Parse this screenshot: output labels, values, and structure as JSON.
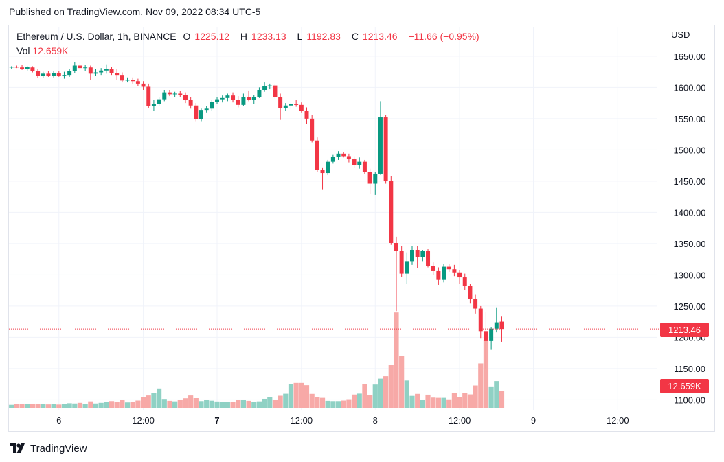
{
  "header": {
    "published": "Published on TradingView.com, Nov 09, 2022 08:34 UTC-5"
  },
  "legend": {
    "symbol": "Ethereum / U.S. Dollar, 1h, BINANCE",
    "o_label": "O",
    "o_value": "1225.12",
    "h_label": "H",
    "h_value": "1233.13",
    "l_label": "L",
    "l_value": "1192.83",
    "c_label": "C",
    "c_value": "1213.46",
    "change": "−11.66 (−0.95%)",
    "vol_label": "Vol",
    "vol_value": "12.659K"
  },
  "axis": {
    "currency": "USD",
    "price_tag": "1213.46",
    "vol_tag": "12.659K"
  },
  "footer": {
    "brand": "TradingView"
  },
  "colors": {
    "up": "#089981",
    "down": "#f23645",
    "up_vol": "#8fd1c4",
    "down_vol": "#f7a9a7"
  },
  "chart_data": {
    "type": "candlestick",
    "interval": "1h",
    "y_ticks": [
      1100,
      1150,
      1200,
      1250,
      1300,
      1350,
      1400,
      1450,
      1500,
      1550,
      1600,
      1650
    ],
    "y_tick_labels": [
      "1100.00",
      "1150.00",
      "1200.00",
      "1250.00",
      "1300.00",
      "1350.00",
      "1400.00",
      "1450.00",
      "1500.00",
      "1550.00",
      "1600.00",
      "1650.00"
    ],
    "ylim": [
      1084,
      1674
    ],
    "x_tick_labels": [
      {
        "label": "6",
        "bar": 9,
        "bold": false
      },
      {
        "label": "12:00",
        "bar": 25,
        "bold": false
      },
      {
        "label": "7",
        "bar": 39,
        "bold": true
      },
      {
        "label": "12:00",
        "bar": 55,
        "bold": false
      },
      {
        "label": "8",
        "bar": 69,
        "bold": false
      },
      {
        "label": "12:00",
        "bar": 85,
        "bold": false
      },
      {
        "label": "9",
        "bar": 99,
        "bold": false
      },
      {
        "label": "12:00",
        "bar": 115,
        "bold": false
      }
    ],
    "last_price": 1213.46,
    "candles": [
      [
        1632,
        1634,
        1630,
        1633
      ],
      [
        1633,
        1635,
        1631,
        1632
      ],
      [
        1632,
        1636,
        1628,
        1630
      ],
      [
        1630,
        1634,
        1627,
        1633
      ],
      [
        1632,
        1634,
        1624,
        1626
      ],
      [
        1626,
        1630,
        1615,
        1618
      ],
      [
        1618,
        1625,
        1615,
        1622
      ],
      [
        1622,
        1626,
        1617,
        1619
      ],
      [
        1619,
        1626,
        1616,
        1623
      ],
      [
        1623,
        1626,
        1617,
        1619
      ],
      [
        1619,
        1625,
        1614,
        1620
      ],
      [
        1620,
        1630,
        1617,
        1626
      ],
      [
        1626,
        1640,
        1623,
        1635
      ],
      [
        1635,
        1640,
        1628,
        1631
      ],
      [
        1631,
        1636,
        1626,
        1632
      ],
      [
        1632,
        1635,
        1612,
        1622
      ],
      [
        1622,
        1630,
        1618,
        1624
      ],
      [
        1624,
        1631,
        1620,
        1627
      ],
      [
        1627,
        1637,
        1622,
        1630
      ],
      [
        1630,
        1633,
        1620,
        1623
      ],
      [
        1623,
        1629,
        1612,
        1620
      ],
      [
        1620,
        1624,
        1608,
        1611
      ],
      [
        1611,
        1616,
        1608,
        1612
      ],
      [
        1612,
        1616,
        1606,
        1610
      ],
      [
        1610,
        1614,
        1602,
        1606
      ],
      [
        1606,
        1610,
        1596,
        1601
      ],
      [
        1601,
        1606,
        1567,
        1570
      ],
      [
        1570,
        1580,
        1563,
        1574
      ],
      [
        1574,
        1584,
        1570,
        1581
      ],
      [
        1581,
        1596,
        1578,
        1592
      ],
      [
        1592,
        1596,
        1586,
        1589
      ],
      [
        1589,
        1593,
        1584,
        1590
      ],
      [
        1590,
        1594,
        1584,
        1588
      ],
      [
        1588,
        1592,
        1575,
        1580
      ],
      [
        1580,
        1584,
        1566,
        1571
      ],
      [
        1571,
        1575,
        1546,
        1549
      ],
      [
        1549,
        1566,
        1546,
        1564
      ],
      [
        1564,
        1570,
        1560,
        1566
      ],
      [
        1566,
        1580,
        1562,
        1577
      ],
      [
        1577,
        1585,
        1573,
        1581
      ],
      [
        1581,
        1587,
        1576,
        1583
      ],
      [
        1583,
        1590,
        1578,
        1587
      ],
      [
        1587,
        1592,
        1576,
        1580
      ],
      [
        1580,
        1586,
        1568,
        1572
      ],
      [
        1572,
        1590,
        1570,
        1585
      ],
      [
        1585,
        1595,
        1578,
        1580
      ],
      [
        1580,
        1588,
        1574,
        1585
      ],
      [
        1585,
        1600,
        1583,
        1596
      ],
      [
        1596,
        1608,
        1593,
        1602
      ],
      [
        1602,
        1606,
        1597,
        1603
      ],
      [
        1603,
        1605,
        1582,
        1585
      ],
      [
        1585,
        1590,
        1548,
        1567
      ],
      [
        1567,
        1575,
        1562,
        1571
      ],
      [
        1571,
        1576,
        1565,
        1573
      ],
      [
        1573,
        1580,
        1569,
        1572
      ],
      [
        1572,
        1576,
        1560,
        1562
      ],
      [
        1562,
        1568,
        1542,
        1550
      ],
      [
        1550,
        1556,
        1512,
        1515
      ],
      [
        1515,
        1520,
        1465,
        1468
      ],
      [
        1468,
        1472,
        1436,
        1463
      ],
      [
        1463,
        1484,
        1460,
        1481
      ],
      [
        1481,
        1492,
        1478,
        1489
      ],
      [
        1489,
        1498,
        1484,
        1494
      ],
      [
        1494,
        1496,
        1488,
        1490
      ],
      [
        1490,
        1494,
        1480,
        1485
      ],
      [
        1485,
        1490,
        1471,
        1476
      ],
      [
        1476,
        1488,
        1470,
        1481
      ],
      [
        1481,
        1484,
        1462,
        1465
      ],
      [
        1465,
        1470,
        1430,
        1446
      ],
      [
        1446,
        1465,
        1428,
        1462
      ],
      [
        1462,
        1578,
        1460,
        1552
      ],
      [
        1552,
        1556,
        1446,
        1450
      ],
      [
        1450,
        1458,
        1348,
        1351
      ],
      [
        1351,
        1361,
        1242,
        1338
      ],
      [
        1338,
        1346,
        1297,
        1302
      ],
      [
        1302,
        1336,
        1286,
        1322
      ],
      [
        1322,
        1346,
        1316,
        1340
      ],
      [
        1340,
        1346,
        1311,
        1328
      ],
      [
        1328,
        1340,
        1322,
        1338
      ],
      [
        1338,
        1342,
        1312,
        1314
      ],
      [
        1314,
        1320,
        1300,
        1306
      ],
      [
        1306,
        1312,
        1284,
        1292
      ],
      [
        1292,
        1317,
        1288,
        1313
      ],
      [
        1313,
        1318,
        1305,
        1309
      ],
      [
        1309,
        1316,
        1298,
        1304
      ],
      [
        1304,
        1308,
        1286,
        1296
      ],
      [
        1296,
        1302,
        1276,
        1282
      ],
      [
        1282,
        1286,
        1254,
        1262
      ],
      [
        1262,
        1268,
        1238,
        1246
      ],
      [
        1246,
        1250,
        1198,
        1210
      ],
      [
        1210,
        1240,
        1150,
        1194
      ],
      [
        1194,
        1216,
        1180,
        1214
      ],
      [
        1214,
        1248,
        1208,
        1224
      ],
      [
        1225.12,
        1233.13,
        1192.83,
        1213.46
      ]
    ],
    "volume": [
      2.2,
      2.6,
      3.0,
      2.8,
      2.6,
      2.9,
      2.9,
      2.5,
      2.6,
      2.4,
      3.0,
      3.4,
      3.2,
      3.7,
      2.9,
      4.8,
      3.2,
      3.7,
      4.5,
      5.0,
      4.2,
      5.8,
      4.0,
      4.3,
      5.4,
      7.8,
      9.2,
      11.0,
      14.5,
      6.6,
      5.2,
      4.8,
      5.9,
      7.1,
      9.2,
      7.2,
      5.0,
      5.8,
      5.3,
      4.7,
      4.5,
      4.3,
      4.2,
      5.7,
      5.8,
      5.2,
      4.3,
      4.8,
      6.7,
      7.8,
      5.7,
      9.0,
      10.5,
      18.0,
      18.6,
      18.6,
      16.9,
      10.4,
      8.0,
      7.4,
      5.2,
      5.0,
      5.0,
      5.4,
      6.4,
      9.9,
      10.6,
      17.8,
      9.5,
      17.4,
      21.8,
      23.6,
      32.0,
      71.4,
      38.8,
      20.4,
      8.9,
      10.4,
      6.1,
      9.8,
      7.6,
      7.4,
      7.4,
      6.3,
      11.2,
      7.9,
      11.2,
      10.0,
      16.7,
      33.2,
      50.4,
      15.5,
      20.0,
      12.66
    ]
  }
}
